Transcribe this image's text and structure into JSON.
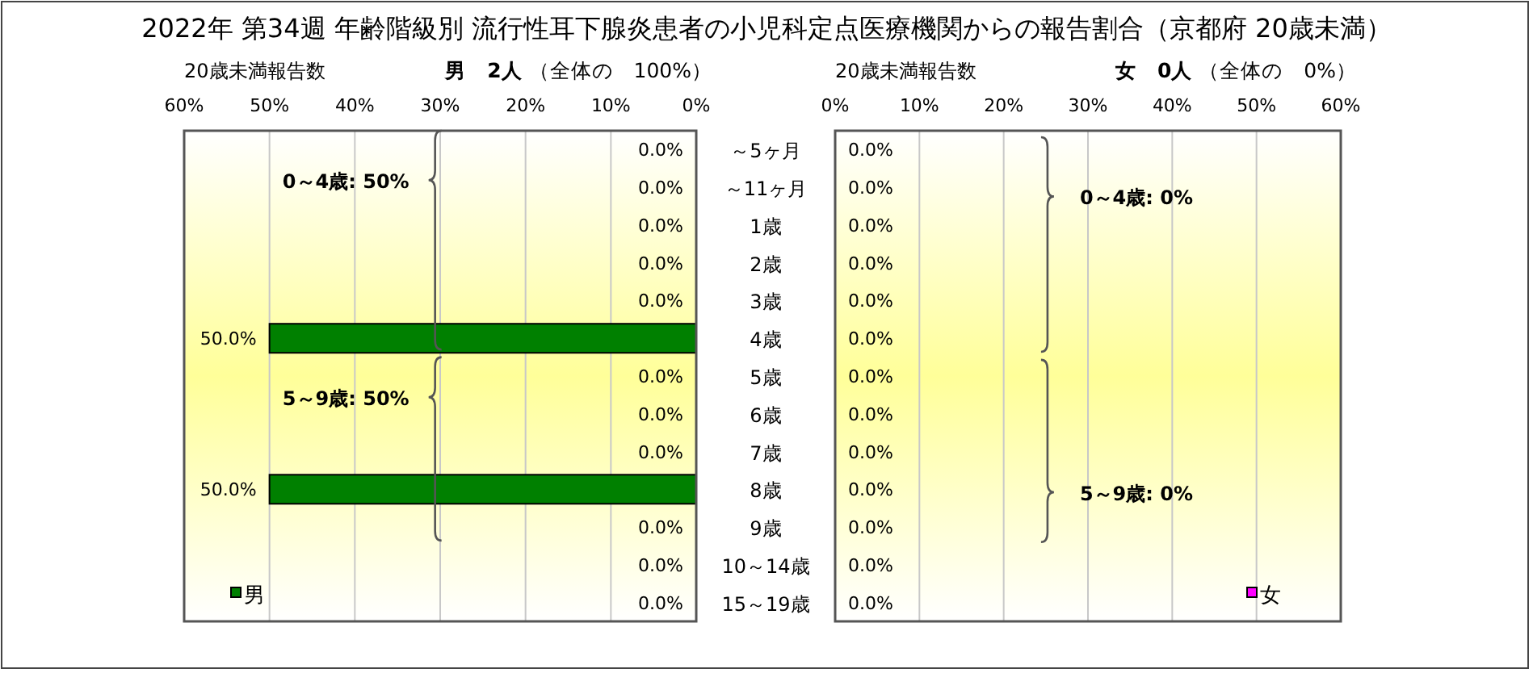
{
  "chart_data": [
    {
      "type": "bar",
      "orientation": "horizontal",
      "title": "2022年 第34週 年齢階級別 流行性耳下腺炎患者の小児科定点医療機関からの報告割合（京都府 20歳未満）",
      "subtitle": "**男　2人** （全体の　100%）",
      "annotations": [
        "20歳未満報告数",
        "0～4歳: 50%",
        "5～9歳: 50%"
      ],
      "categories": [
        "～5ヶ月",
        "～11ヶ月",
        "1歳",
        "2歳",
        "3歳",
        "4歳",
        "5歳",
        "6歳",
        "7歳",
        "8歳",
        "9歳",
        "10～14歳",
        "15～19歳"
      ],
      "series": [
        {
          "name": "男",
          "color": "#008000",
          "values": [
            0,
            0,
            0,
            0,
            0,
            50,
            0,
            0,
            0,
            50,
            0,
            0,
            0
          ],
          "value_labels": [
            "0.0%",
            "0.0%",
            "0.0%",
            "0.0%",
            "0.0%",
            "50.0%",
            "0.0%",
            "0.0%",
            "0.0%",
            "50.0%",
            "0.0%",
            "0.0%",
            "0.0%"
          ]
        }
      ],
      "xlim": [
        60,
        0
      ],
      "xticks": [
        {
          "value": 60,
          "label": "60%"
        },
        {
          "value": 50,
          "label": "50%"
        },
        {
          "value": 40,
          "label": "40%"
        },
        {
          "value": 30,
          "label": "30%"
        },
        {
          "value": 20,
          "label": "20%"
        },
        {
          "value": 10,
          "label": "10%"
        },
        {
          "value": 0,
          "label": "0%"
        }
      ],
      "grid": "x",
      "legend": "bottom left"
    },
    {
      "type": "bar",
      "orientation": "horizontal",
      "subtitle": "**女　0人** （全体の　0%）",
      "annotations": [
        "20歳未満報告数",
        "0～4歳: 0%",
        "5～9歳: 0%"
      ],
      "categories": [
        "～5ヶ月",
        "～11ヶ月",
        "1歳",
        "2歳",
        "3歳",
        "4歳",
        "5歳",
        "6歳",
        "7歳",
        "8歳",
        "9歳",
        "10～14歳",
        "15～19歳"
      ],
      "series": [
        {
          "name": "女",
          "color": "#ff00ff",
          "values": [
            0,
            0,
            0,
            0,
            0,
            0,
            0,
            0,
            0,
            0,
            0,
            0,
            0
          ],
          "value_labels": [
            "0.0%",
            "0.0%",
            "0.0%",
            "0.0%",
            "0.0%",
            "0.0%",
            "0.0%",
            "0.0%",
            "0.0%",
            "0.0%",
            "0.0%",
            "0.0%",
            "0.0%"
          ]
        }
      ],
      "xlim": [
        0,
        60
      ],
      "xticks": [
        {
          "value": 0,
          "label": "0%"
        },
        {
          "value": 10,
          "label": "10%"
        },
        {
          "value": 20,
          "label": "20%"
        },
        {
          "value": 30,
          "label": "30%"
        },
        {
          "value": 40,
          "label": "40%"
        },
        {
          "value": 50,
          "label": "50%"
        },
        {
          "value": 60,
          "label": "60%"
        }
      ],
      "grid": "x",
      "legend": "bottom right",
      "tick_labels": "x"
    }
  ]
}
